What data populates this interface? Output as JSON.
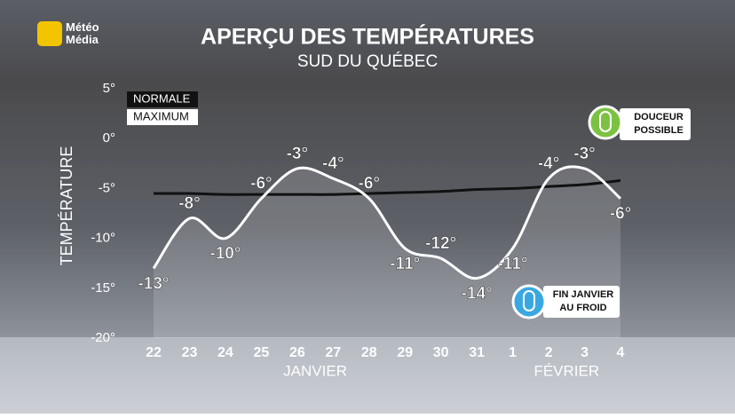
{
  "logo": "Météo\nMédia",
  "chart_data": {
    "type": "line",
    "title": "APERÇU DES TEMPÉRATURES",
    "subtitle": "SUD DU QUÉBEC",
    "ylabel": "TEMPÉRATURE",
    "categories": [
      "22",
      "23",
      "24",
      "25",
      "26",
      "27",
      "28",
      "29",
      "30",
      "31",
      "1",
      "2",
      "3",
      "4"
    ],
    "month_labels": [
      "JANVIER",
      "FÉVRIER"
    ],
    "series": [
      {
        "name": "NORMALE",
        "color": "#111111",
        "values": [
          -5.5,
          -5.5,
          -5.6,
          -5.6,
          -5.6,
          -5.6,
          -5.5,
          -5.4,
          -5.3,
          -5.1,
          -5.0,
          -4.8,
          -4.6,
          -4.2
        ]
      },
      {
        "name": "MAXIMUM",
        "color": "#ffffff",
        "values": [
          -13,
          -8,
          -10,
          -6,
          -3,
          -4,
          -6,
          -11,
          -12,
          -14,
          -11,
          -4,
          -3,
          -6
        ],
        "value_labels": [
          "-13°",
          "-8°",
          "-10°",
          "-6°",
          "-3°",
          "-4°",
          "-6°",
          "-11°",
          "-12°",
          "-14°",
          "-11°",
          "-4°",
          "-3°",
          "-6°"
        ]
      }
    ],
    "ylim": [
      -20,
      5
    ],
    "yticks": [
      {
        "value": -20,
        "label": "-20°"
      },
      {
        "value": -15,
        "label": "-15°"
      },
      {
        "value": -10,
        "label": "-10°"
      },
      {
        "value": -5,
        "label": "-5°"
      },
      {
        "value": 0,
        "label": "0°"
      },
      {
        "value": 5,
        "label": "5°"
      }
    ],
    "annotations": [
      "DOUCEUR\nPOSSIBLE",
      "FIN JANVIER\nAU FROID"
    ]
  }
}
